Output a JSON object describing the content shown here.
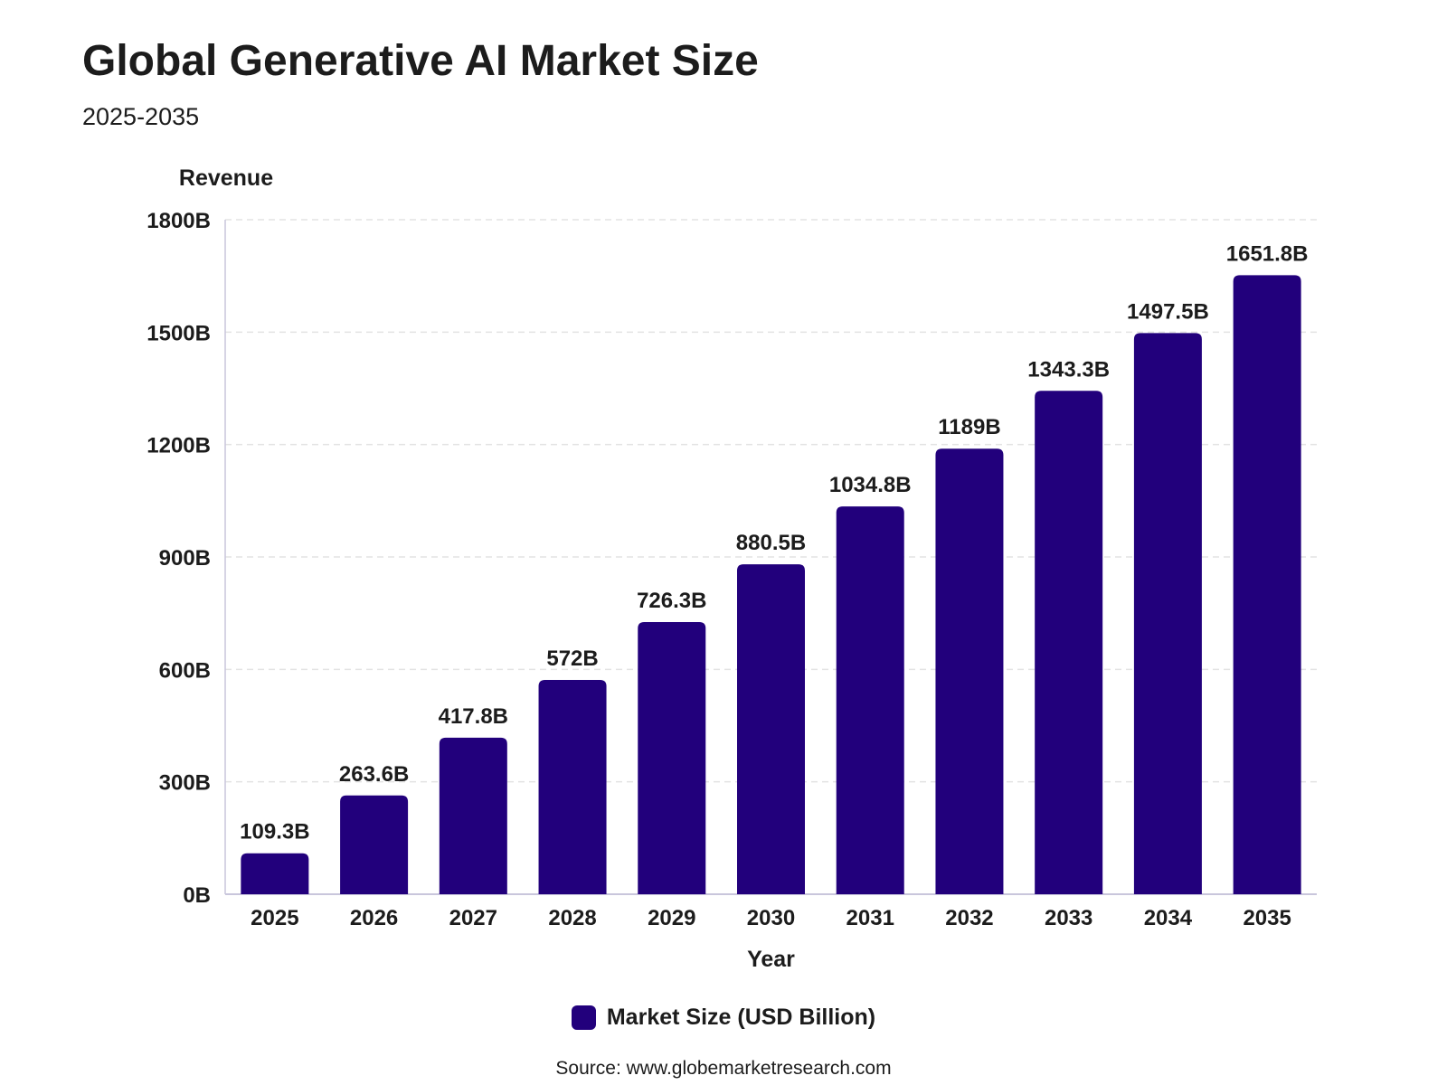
{
  "header": {
    "title": "Global Generative AI Market Size",
    "subtitle": "2025-2035"
  },
  "colors": {
    "bar": "#22007c",
    "grid": "#e3e3e3",
    "axis": "#c9c6dc"
  },
  "chart_data": {
    "type": "bar",
    "title": "Global Generative AI Market Size",
    "subtitle": "2025-2035",
    "xlabel": "Year",
    "ylabel": "Revenue",
    "ylim": [
      0,
      1800
    ],
    "yticks": [
      "0B",
      "300B",
      "600B",
      "900B",
      "1200B",
      "1500B",
      "1800B"
    ],
    "ytick_values": [
      0,
      300,
      600,
      900,
      1200,
      1500,
      1800
    ],
    "grid": true,
    "legend_position": "bottom-center",
    "categories": [
      "2025",
      "2026",
      "2027",
      "2028",
      "2029",
      "2030",
      "2031",
      "2032",
      "2033",
      "2034",
      "2035"
    ],
    "series": [
      {
        "name": "Market Size (USD Billion)",
        "color": "#22007c",
        "values": [
          109.3,
          263.6,
          417.8,
          572,
          726.3,
          880.5,
          1034.8,
          1189,
          1343.3,
          1497.5,
          1651.8
        ],
        "labels": [
          "109.3B",
          "263.6B",
          "417.8B",
          "572B",
          "726.3B",
          "880.5B",
          "1034.8B",
          "1189B",
          "1343.3B",
          "1497.5B",
          "1651.8B"
        ]
      }
    ]
  },
  "legend": {
    "label": "Market Size (USD Billion)"
  },
  "footer": {
    "source": "Source: www.globemarketresearch.com"
  }
}
